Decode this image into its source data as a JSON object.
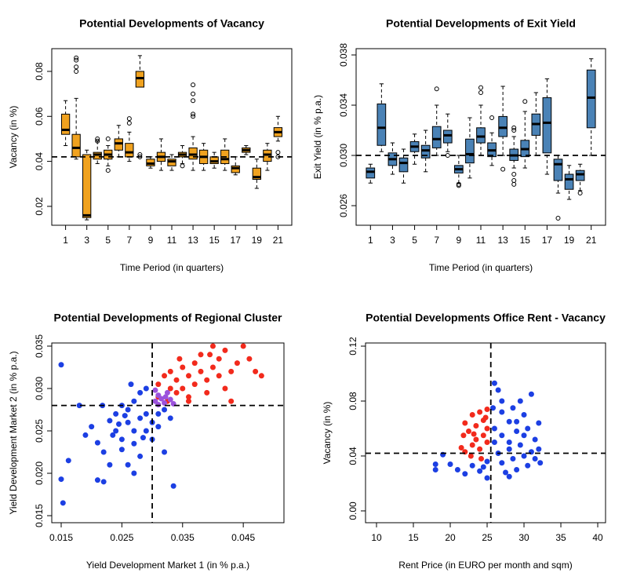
{
  "chart_data": [
    {
      "type": "box",
      "title": "Potential Developments of Vacancy",
      "xlabel": "Time Period (in quarters)",
      "ylabel": "Vacancy (in %)",
      "color": "#f0a21f",
      "hline": 0.042,
      "x": [
        1,
        2,
        3,
        4,
        5,
        6,
        7,
        8,
        9,
        10,
        11,
        12,
        13,
        14,
        15,
        16,
        17,
        18,
        19,
        20,
        21
      ],
      "min": [
        0.047,
        0.041,
        0.014,
        0.039,
        0.038,
        0.042,
        0.04,
        0.073,
        0.037,
        0.036,
        0.036,
        0.039,
        0.036,
        0.036,
        0.037,
        0.036,
        0.034,
        0.043,
        0.028,
        0.036,
        0.049
      ],
      "q1": [
        0.052,
        0.042,
        0.015,
        0.041,
        0.041,
        0.045,
        0.042,
        0.073,
        0.038,
        0.04,
        0.038,
        0.042,
        0.041,
        0.039,
        0.039,
        0.039,
        0.035,
        0.044,
        0.032,
        0.04,
        0.051
      ],
      "median": [
        0.054,
        0.046,
        0.016,
        0.043,
        0.043,
        0.048,
        0.044,
        0.077,
        0.039,
        0.042,
        0.04,
        0.043,
        0.043,
        0.042,
        0.04,
        0.041,
        0.037,
        0.045,
        0.033,
        0.043,
        0.053
      ],
      "q3": [
        0.061,
        0.052,
        0.043,
        0.044,
        0.045,
        0.05,
        0.048,
        0.08,
        0.041,
        0.044,
        0.041,
        0.044,
        0.046,
        0.045,
        0.042,
        0.045,
        0.038,
        0.046,
        0.037,
        0.045,
        0.055
      ],
      "max": [
        0.067,
        0.068,
        0.045,
        0.049,
        0.047,
        0.056,
        0.053,
        0.087,
        0.042,
        0.05,
        0.043,
        0.047,
        0.051,
        0.048,
        0.044,
        0.05,
        0.042,
        0.047,
        0.041,
        0.048,
        0.06
      ],
      "outliers": [
        [],
        [
          0.086,
          0.085,
          0.082,
          0.08
        ],
        [],
        [
          0.05,
          0.049
        ],
        [
          0.036,
          0.05
        ],
        [],
        [
          0.059,
          0.057
        ],
        [
          0.043,
          0.042
        ],
        [],
        [],
        [],
        [
          0.038
        ],
        [
          0.074,
          0.07,
          0.067,
          0.061,
          0.06
        ],
        [],
        [],
        [],
        [],
        [],
        [],
        [],
        [
          0.044,
          0.042
        ]
      ],
      "xlim": [
        -0.3,
        22.3
      ],
      "xticks": [
        1,
        3,
        5,
        7,
        9,
        11,
        13,
        15,
        17,
        19,
        21
      ],
      "ylim": [
        0.0116,
        0.0901
      ],
      "yticks": [
        0.02,
        0.04,
        0.06,
        0.08
      ]
    },
    {
      "type": "box",
      "title": "Potential Developments of Exit Yield",
      "xlabel": "Time Period (in quarters)",
      "ylabel": "Exit Yield (in % p.a.)",
      "color": "#4a82b6",
      "hline": 0.03,
      "x": [
        1,
        2,
        3,
        4,
        5,
        6,
        7,
        8,
        9,
        10,
        11,
        12,
        13,
        14,
        15,
        16,
        17,
        18,
        19,
        20,
        21
      ],
      "min": [
        0.0278,
        0.0303,
        0.0285,
        0.0278,
        0.0293,
        0.0287,
        0.03,
        0.0303,
        0.0278,
        0.0282,
        0.03,
        0.0292,
        0.03,
        0.029,
        0.029,
        0.03,
        0.0285,
        0.027,
        0.0265,
        0.0272,
        0.03
      ],
      "q1": [
        0.0282,
        0.0308,
        0.0292,
        0.0287,
        0.0303,
        0.0298,
        0.0306,
        0.031,
        0.0286,
        0.0294,
        0.031,
        0.0299,
        0.0315,
        0.0296,
        0.0299,
        0.0316,
        0.0302,
        0.028,
        0.0273,
        0.028,
        0.0322
      ],
      "median": [
        0.0287,
        0.0322,
        0.0297,
        0.0294,
        0.0307,
        0.0304,
        0.0313,
        0.0316,
        0.0289,
        0.0301,
        0.0315,
        0.0304,
        0.0322,
        0.03,
        0.0305,
        0.0325,
        0.0326,
        0.0293,
        0.0281,
        0.0285,
        0.0346
      ],
      "q3": [
        0.029,
        0.0341,
        0.0302,
        0.0298,
        0.0311,
        0.0308,
        0.0323,
        0.032,
        0.0292,
        0.0313,
        0.0322,
        0.031,
        0.0331,
        0.0305,
        0.0312,
        0.0333,
        0.0346,
        0.0297,
        0.0285,
        0.0288,
        0.0368
      ],
      "max": [
        0.0293,
        0.0357,
        0.031,
        0.0305,
        0.0317,
        0.032,
        0.034,
        0.0333,
        0.03,
        0.033,
        0.034,
        0.0318,
        0.0355,
        0.0315,
        0.0335,
        0.035,
        0.0361,
        0.03,
        0.0292,
        0.0293,
        0.0377
      ],
      "outliers": [
        [],
        [],
        [],
        [],
        [],
        [],
        [
          0.0353
        ],
        [
          0.03
        ],
        [
          0.0276,
          0.0277
        ],
        [],
        [
          0.0354,
          0.035
        ],
        [
          0.033
        ],
        [
          0.0289
        ],
        [
          0.0322,
          0.032,
          0.0285,
          0.028,
          0.0277
        ],
        [
          0.0343
        ],
        [],
        [],
        [
          0.025
        ],
        [],
        [
          0.027
        ],
        []
      ],
      "xlim": [
        -0.3,
        22.3
      ],
      "xticks": [
        1,
        3,
        5,
        7,
        9,
        11,
        13,
        15,
        17,
        19,
        21
      ],
      "ylim": [
        0.02444,
        0.0385
      ],
      "yticks": [
        0.026,
        {
          "value": 0.03,
          "label": "0.030"
        },
        0.034,
        0.038
      ]
    },
    {
      "type": "scatter",
      "title": "Potential Developments of Regional Cluster",
      "xlabel": "Yield Development Market 1 (in % p.a.)",
      "ylabel": "Yield Development Market 2 (in % p.a.)",
      "vline": 0.03,
      "hline": 0.028,
      "series": [
        {
          "color": "#1c3fe3",
          "points": [
            [
              0.015,
              0.0328
            ],
            [
              0.0153,
              0.0165
            ],
            [
              0.015,
              0.0193
            ],
            [
              0.0162,
              0.0215
            ],
            [
              0.019,
              0.0245
            ],
            [
              0.02,
              0.0255
            ],
            [
              0.021,
              0.0192
            ],
            [
              0.022,
              0.019
            ],
            [
              0.021,
              0.0236
            ],
            [
              0.022,
              0.0225
            ],
            [
              0.023,
              0.0262
            ],
            [
              0.023,
              0.021
            ],
            [
              0.024,
              0.025
            ],
            [
              0.024,
              0.027
            ],
            [
              0.025,
              0.024
            ],
            [
              0.025,
              0.028
            ],
            [
              0.025,
              0.0228
            ],
            [
              0.026,
              0.026
            ],
            [
              0.026,
              0.0275
            ],
            [
              0.026,
              0.021
            ],
            [
              0.027,
              0.025
            ],
            [
              0.027,
              0.0285
            ],
            [
              0.027,
              0.0235
            ],
            [
              0.028,
              0.0265
            ],
            [
              0.028,
              0.0295
            ],
            [
              0.028,
              0.022
            ],
            [
              0.029,
              0.027
            ],
            [
              0.029,
              0.025
            ],
            [
              0.029,
              0.03
            ],
            [
              0.03,
              0.026
            ],
            [
              0.03,
              0.024
            ],
            [
              0.031,
              0.027
            ],
            [
              0.031,
              0.0255
            ],
            [
              0.032,
              0.0275
            ],
            [
              0.032,
              0.0225
            ],
            [
              0.033,
              0.0265
            ],
            [
              0.027,
              0.02
            ],
            [
              0.0218,
              0.028
            ],
            [
              0.018,
              0.028
            ],
            [
              0.0335,
              0.0185
            ],
            [
              0.0235,
              0.0245
            ],
            [
              0.0265,
              0.0305
            ],
            [
              0.0255,
              0.0268
            ],
            [
              0.0285,
              0.0242
            ],
            [
              0.0245,
              0.0258
            ]
          ]
        },
        {
          "color": "#f22a1c",
          "points": [
            [
              0.031,
              0.029
            ],
            [
              0.031,
              0.0305
            ],
            [
              0.032,
              0.0315
            ],
            [
              0.033,
              0.03
            ],
            [
              0.033,
              0.032
            ],
            [
              0.034,
              0.0295
            ],
            [
              0.034,
              0.031
            ],
            [
              0.035,
              0.0325
            ],
            [
              0.035,
              0.03
            ],
            [
              0.036,
              0.0315
            ],
            [
              0.036,
              0.029
            ],
            [
              0.037,
              0.033
            ],
            [
              0.037,
              0.0305
            ],
            [
              0.038,
              0.032
            ],
            [
              0.038,
              0.034
            ],
            [
              0.039,
              0.031
            ],
            [
              0.039,
              0.0295
            ],
            [
              0.04,
              0.0325
            ],
            [
              0.04,
              0.035
            ],
            [
              0.041,
              0.0315
            ],
            [
              0.041,
              0.0335
            ],
            [
              0.042,
              0.03
            ],
            [
              0.042,
              0.0345
            ],
            [
              0.043,
              0.032
            ],
            [
              0.044,
              0.033
            ],
            [
              0.045,
              0.035
            ],
            [
              0.046,
              0.0335
            ],
            [
              0.047,
              0.032
            ],
            [
              0.048,
              0.0315
            ],
            [
              0.036,
              0.0285
            ],
            [
              0.0345,
              0.0335
            ],
            [
              0.0325,
              0.0285
            ],
            [
              0.0395,
              0.034
            ],
            [
              0.043,
              0.0285
            ]
          ]
        },
        {
          "color": "#9b52dc",
          "points": [
            [
              0.0305,
              0.0285
            ],
            [
              0.031,
              0.0292
            ],
            [
              0.0315,
              0.0288
            ],
            [
              0.032,
              0.0283
            ],
            [
              0.0325,
              0.0295
            ],
            [
              0.033,
              0.0287
            ],
            [
              0.0305,
              0.0298
            ],
            [
              0.0335,
              0.0282
            ],
            [
              0.031,
              0.0281
            ],
            [
              0.0322,
              0.029
            ]
          ]
        }
      ],
      "xlim": [
        0.01345,
        0.0517
      ],
      "xticks": [
        0.015,
        0.025,
        0.035,
        0.045
      ],
      "ylim": [
        0.01417,
        0.03537
      ],
      "yticks": [
        0.015,
        {
          "value": 0.02,
          "label": "0.020"
        },
        0.025,
        {
          "value": 0.03,
          "label": "0.030"
        },
        0.035
      ]
    },
    {
      "type": "scatter",
      "title": "Potential Developments Office Rent - Vacancy",
      "xlabel": "Rent Price (in EURO per month and sqm)",
      "ylabel": "Vacancy (in %)",
      "vline": 25.5,
      "hline": 0.042,
      "series": [
        {
          "color": "#1c3fe3",
          "points": [
            [
              18,
              0.03
            ],
            [
              18,
              0.034
            ],
            [
              19,
              0.041
            ],
            [
              20,
              0.034
            ],
            [
              21,
              0.03
            ],
            [
              22,
              0.027
            ],
            [
              23,
              0.033
            ],
            [
              24,
              0.029
            ],
            [
              25,
              0.024
            ],
            [
              26,
              0.093
            ],
            [
              26.5,
              0.088
            ],
            [
              27,
              0.08
            ],
            [
              27,
              0.072
            ],
            [
              28,
              0.065
            ],
            [
              28.5,
              0.075
            ],
            [
              29,
              0.058
            ],
            [
              29.5,
              0.08
            ],
            [
              30,
              0.07
            ],
            [
              30.5,
              0.06
            ],
            [
              31,
              0.085
            ],
            [
              31.5,
              0.052
            ],
            [
              32,
              0.045
            ],
            [
              32.2,
              0.035
            ],
            [
              26,
              0.05
            ],
            [
              26.5,
              0.042
            ],
            [
              27,
              0.035
            ],
            [
              27.5,
              0.028
            ],
            [
              28,
              0.045
            ],
            [
              28.5,
              0.038
            ],
            [
              29,
              0.03
            ],
            [
              29.5,
              0.048
            ],
            [
              30,
              0.04
            ],
            [
              30.5,
              0.033
            ],
            [
              31,
              0.043
            ],
            [
              31.5,
              0.038
            ],
            [
              26,
              0.06
            ],
            [
              27,
              0.055
            ],
            [
              28,
              0.05
            ],
            [
              25,
              0.036
            ],
            [
              24.5,
              0.032
            ],
            [
              29,
              0.065
            ],
            [
              30,
              0.055
            ],
            [
              25.8,
              0.075
            ],
            [
              32,
              0.064
            ],
            [
              28,
              0.025
            ]
          ]
        },
        {
          "color": "#f22a1c",
          "points": [
            [
              22,
              0.064
            ],
            [
              22.5,
              0.058
            ],
            [
              23,
              0.07
            ],
            [
              23.5,
              0.052
            ],
            [
              24,
              0.072
            ],
            [
              24.5,
              0.066
            ],
            [
              25,
              0.074
            ],
            [
              23,
              0.048
            ],
            [
              24,
              0.045
            ],
            [
              22,
              0.043
            ],
            [
              25,
              0.06
            ],
            [
              24.5,
              0.055
            ],
            [
              23.5,
              0.062
            ],
            [
              21.5,
              0.046
            ],
            [
              25,
              0.05
            ],
            [
              22.8,
              0.04
            ],
            [
              24.2,
              0.038
            ],
            [
              23.2,
              0.056
            ],
            [
              24.8,
              0.068
            ],
            [
              21.8,
              0.055
            ]
          ]
        }
      ],
      "xlim": [
        8.51,
        41.06
      ],
      "xticks": [
        10,
        15,
        20,
        25,
        30,
        35,
        40
      ],
      "ylim": [
        -0.0086,
        0.1223
      ],
      "yticks": [
        {
          "value": 0,
          "label": "0.00"
        },
        0.04,
        0.08,
        0.12
      ]
    }
  ]
}
